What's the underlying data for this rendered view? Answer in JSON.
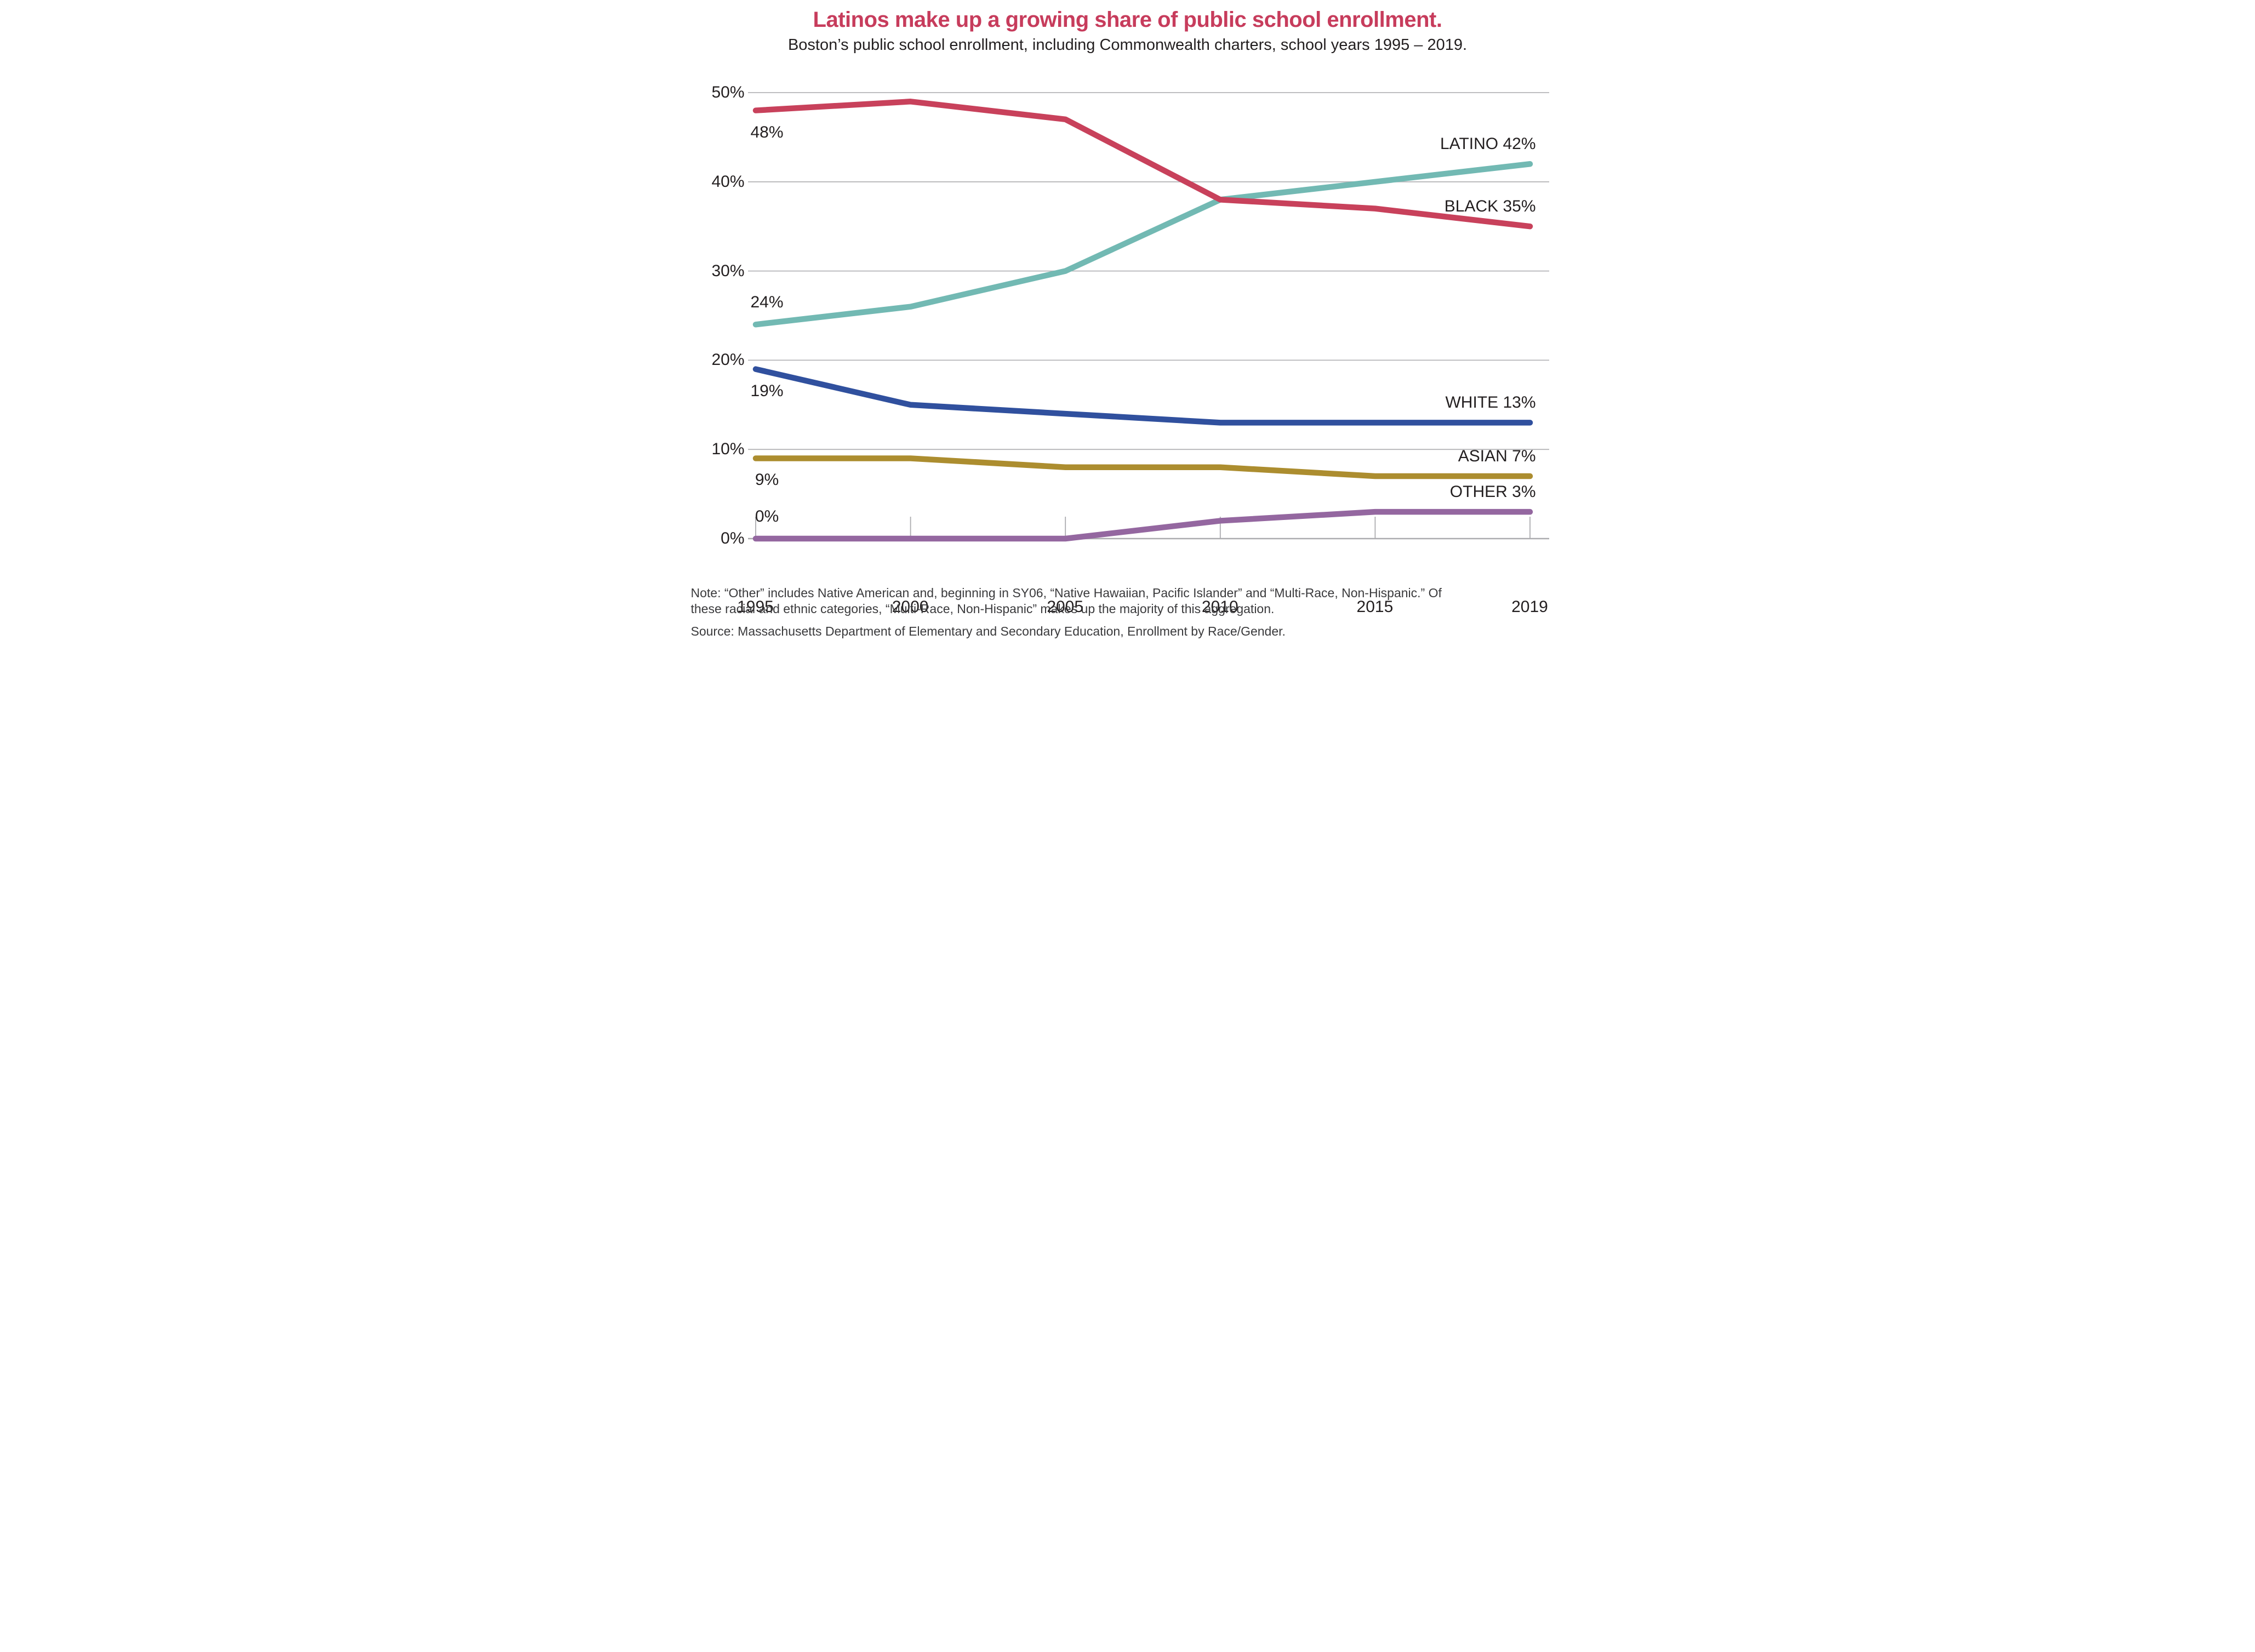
{
  "header": {
    "title": "Latinos make up a growing share of public school enrollment.",
    "subtitle": "Boston’s public school enrollment, including Commonwealth charters, school years 1995 – 2019."
  },
  "footer": {
    "note": "Note: “Other” includes Native American and, beginning in SY06, “Native Hawaiian, Pacific Islander” and “Multi-Race, Non-Hispanic.” Of these racial and ethnic categories, “Multi-Race, Non-Hispanic” makes up the majority of this aggregation.",
    "source": "Source: Massachusetts Department of Elementary and Secondary Education, Enrollment by Race/Gender."
  },
  "palette": {
    "title_accent": "#C73C5C",
    "grid": "#B5B5B8",
    "axis": "#ACACAF",
    "text": "#231F20"
  },
  "chart_data": {
    "type": "line",
    "title": "Latinos make up a growing share of public school enrollment.",
    "subtitle": "Boston’s public school enrollment, including Commonwealth charters, school years 1995 – 2019.",
    "categories": [
      "1995",
      "2000",
      "2005",
      "2010",
      "2015",
      "2019"
    ],
    "xlabel": "",
    "ylabel": "",
    "unit": "%",
    "ylim": [
      0,
      50
    ],
    "y_ticks": [
      0,
      10,
      20,
      30,
      40,
      50
    ],
    "y_tick_labels": [
      "0%",
      "10%",
      "20%",
      "30%",
      "40%",
      "50%"
    ],
    "grid": "horizontal",
    "legend_position": "end-of-line labels",
    "series": [
      {
        "name": "LATINO",
        "color": "#72B9B3",
        "values": [
          24,
          26,
          30,
          38,
          40,
          42
        ],
        "start_label": "24%",
        "start_label_position": "above",
        "end_label": "LATINO 42%"
      },
      {
        "name": "WHITE",
        "color": "#30509E",
        "values": [
          19,
          15,
          14,
          13,
          13,
          13
        ],
        "start_label": "19%",
        "start_label_position": "below",
        "end_label": "WHITE 13%"
      },
      {
        "name": "ASIAN",
        "color": "#AC8D2F",
        "values": [
          9,
          9,
          8,
          8,
          7,
          7
        ],
        "start_label": "9%",
        "start_label_position": "below",
        "end_label": "ASIAN 7%"
      },
      {
        "name": "OTHER",
        "color": "#9467A0",
        "values": [
          0,
          0,
          0,
          2,
          3,
          3
        ],
        "start_label": "0%",
        "start_label_position": "above",
        "end_label": "OTHER 3%"
      },
      {
        "name": "BLACK",
        "color": "#C8415B",
        "values": [
          48,
          49,
          47,
          38,
          37,
          35
        ],
        "start_label": "48%",
        "start_label_position": "below",
        "end_label": "BLACK 35%"
      }
    ]
  }
}
